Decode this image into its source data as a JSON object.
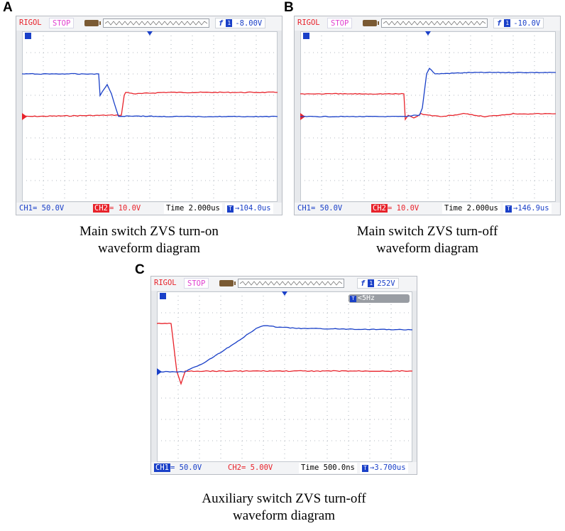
{
  "panels": [
    {
      "letter": "A",
      "brand": "RIGOL",
      "run_state": "STOP",
      "trigger_level": "-8.00V",
      "trigger_channel": "1",
      "ch1_label": "CH1",
      "ch1_scale": "50.0V",
      "ch2_label": "CH2",
      "ch2_scale": "10.0V",
      "time_label": "Time",
      "timebase": "2.000us",
      "offset": "104.0us",
      "caption_line1": "Main switch ZVS turn-on",
      "caption_line2": "waveform diagram"
    },
    {
      "letter": "B",
      "brand": "RIGOL",
      "run_state": "STOP",
      "trigger_level": "-10.0V",
      "trigger_channel": "1",
      "ch1_label": "CH1",
      "ch1_scale": "50.0V",
      "ch2_label": "CH2",
      "ch2_scale": "10.0V",
      "time_label": "Time",
      "timebase": "2.000us",
      "offset": "146.9us",
      "caption_line1": "Main switch ZVS turn-off",
      "caption_line2": "waveform diagram"
    },
    {
      "letter": "C",
      "brand": "RIGOL",
      "run_state": "STOP",
      "trigger_level": "252V",
      "trigger_channel": "1",
      "freq_badge": "<5Hz",
      "ch1_label": "CH1",
      "ch1_scale": "50.0V",
      "ch2_label": "CH2",
      "ch2_scale": "5.00V",
      "time_label": "Time",
      "timebase": "500.0ns",
      "offset": "3.700us",
      "caption_line1": "Auxiliary switch ZVS turn-off",
      "caption_line2": "waveform diagram"
    }
  ],
  "colors": {
    "ch1": "#1a40c8",
    "ch2": "#e8232b",
    "grid_dots": "#9aa3ad",
    "screen": "#ffffff"
  },
  "icons": {
    "trigger_marker": "triangle-down-icon",
    "channel_marker": "channel-arrow-icon",
    "trigger_slope": "rising-edge-icon",
    "battery": "battery-icon"
  }
}
